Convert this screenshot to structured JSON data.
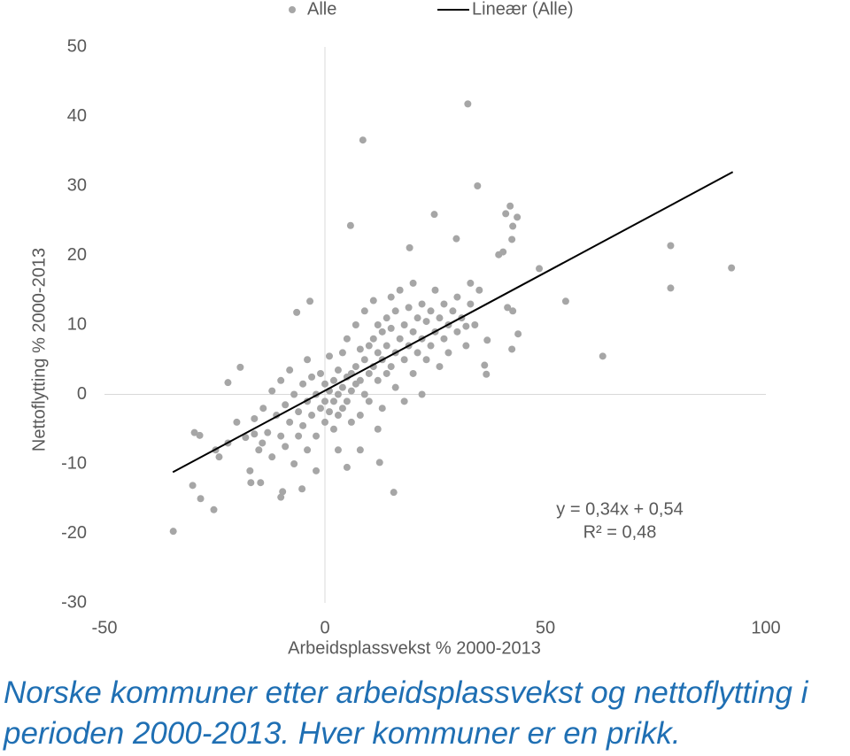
{
  "chart_data": {
    "type": "scatter",
    "xlabel": "Arbeidsplassvekst % 2000-2013",
    "ylabel": "Nettoflytting % 2000-2013",
    "caption": "Norske kommuner etter arbeidsplassvekst og nettoflytting i perioden 2000-2013. Hver kommuner er en prikk.",
    "annotations": [
      "y = 0,34x + 0,54",
      "R² = 0,48"
    ],
    "xlim": [
      -50,
      100
    ],
    "xticks": [
      -50,
      0,
      50,
      100
    ],
    "ylim": [
      -30,
      50
    ],
    "yticks": [
      -30,
      -20,
      -10,
      0,
      10,
      20,
      30,
      40,
      50
    ],
    "series": [
      {
        "name": "Alle",
        "color": "#a6a6a6",
        "x": [
          32.4,
          8.6,
          34.6,
          5.8,
          24.8,
          42,
          41,
          43.6,
          78.4,
          92.2,
          78.4,
          63,
          54.6,
          48.6,
          -34.4,
          -25.2,
          -30,
          -28.2,
          15.6,
          12.4,
          -29.6,
          -28.4,
          -19.2,
          -22,
          -3.4,
          -6.4,
          19.2,
          29.8,
          39.4,
          40.4,
          42.6,
          42.4,
          36.8,
          36.2,
          36.6,
          42.4,
          43.8,
          41.4,
          42.6,
          32,
          -16.8,
          -14.6,
          -9.6,
          -10,
          -5.2,
          -14.2,
          -16,
          -24.8,
          -24,
          -18,
          -16,
          -15,
          -14,
          -13,
          -12,
          -12,
          -11,
          -10,
          -10,
          -9,
          -9,
          -8,
          -8,
          -7,
          -7,
          -6,
          -6,
          -5,
          -5,
          -4,
          -4,
          -4,
          -3,
          -3,
          -2,
          -2,
          -2,
          -1,
          -1,
          0,
          0,
          0,
          1,
          1,
          1,
          2,
          2,
          2,
          3,
          3,
          3,
          4,
          4,
          4,
          5,
          5,
          5,
          6,
          6,
          6,
          7,
          7,
          7,
          8,
          8,
          8,
          9,
          9,
          9,
          10,
          10,
          10,
          11,
          11,
          11,
          12,
          12,
          12,
          13,
          13,
          13,
          14,
          14,
          14,
          15,
          15,
          15,
          16,
          16,
          16,
          17,
          17,
          18,
          18,
          18,
          19,
          19,
          20,
          20,
          20,
          21,
          21,
          22,
          22,
          22,
          23,
          23,
          24,
          24,
          25,
          25,
          26,
          26,
          27,
          27,
          28,
          28,
          29,
          30,
          30,
          31,
          32,
          33,
          33,
          34,
          35,
          -20,
          -22,
          -17,
          3,
          5,
          8,
          12
        ],
        "values": [
          41.8,
          36.6,
          30,
          24.3,
          25.9,
          27.1,
          26,
          25.5,
          21.4,
          18.2,
          15.3,
          5.5,
          13.4,
          18.1,
          -19.7,
          -16.6,
          -13.1,
          -15,
          -14.1,
          -9.8,
          -5.5,
          -5.9,
          3.9,
          1.7,
          13.4,
          11.8,
          21.1,
          22.4,
          20.1,
          20.5,
          24.2,
          22.3,
          7.8,
          4.2,
          2.9,
          6.5,
          8.7,
          12.5,
          12,
          9.8,
          -12.7,
          -12.7,
          -14,
          -14.8,
          -13.6,
          -7,
          -5.7,
          -8,
          -9,
          -6.2,
          -3.5,
          -8,
          -2,
          -5.5,
          0.5,
          -9,
          -3,
          -6,
          2,
          -1.5,
          -7.5,
          -4,
          3.5,
          -10,
          0,
          -2.5,
          -6,
          1.5,
          -4.5,
          -1,
          -8,
          5,
          -3,
          2.5,
          0,
          -6,
          -11,
          -2,
          3,
          -1,
          1.5,
          -4,
          0.5,
          -2.5,
          5.5,
          -1,
          2,
          -5,
          0,
          3.5,
          -3,
          1,
          6,
          -2,
          2.5,
          -1,
          8,
          3,
          -4,
          0.5,
          4,
          10,
          1.5,
          2,
          6.5,
          -3,
          5,
          0,
          12,
          3,
          7,
          -1,
          8,
          4,
          13.5,
          2,
          6,
          10,
          5,
          9,
          -2,
          7,
          11,
          3,
          4,
          9.5,
          14,
          6,
          12,
          1,
          8,
          15,
          5,
          10,
          -1,
          7,
          12.5,
          3,
          9,
          16,
          6,
          11,
          8,
          13,
          0,
          5,
          10.5,
          12,
          7,
          9,
          15,
          4,
          11,
          8,
          13,
          10,
          6,
          12,
          9,
          14,
          11,
          7,
          13,
          16,
          10,
          15,
          -4,
          -7,
          -11,
          -8,
          -10.5,
          -8,
          -5
        ]
      },
      {
        "name": "Lineær (Alle)",
        "color": "#000000",
        "type": "line",
        "x": [
          -34.5,
          92.5
        ],
        "values": [
          -11.2,
          32.0
        ]
      }
    ]
  }
}
